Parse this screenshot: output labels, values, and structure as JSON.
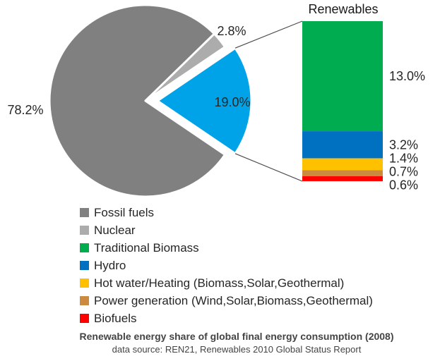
{
  "chart_data": {
    "type": "pie",
    "title": "Renewable energy share of global final energy consumption (2008)",
    "pie": {
      "slices": [
        {
          "name": "Fossil fuels",
          "value": 78.2,
          "label": "78.2%",
          "color": "#808080",
          "exploded": false
        },
        {
          "name": "Nuclear",
          "value": 2.8,
          "label": "2.8%",
          "color": "#ACACAC",
          "exploded": false
        },
        {
          "name": "Renewables",
          "value": 19.0,
          "label": "19.0%",
          "color": "#00A3E8",
          "exploded": true
        }
      ]
    },
    "bar": {
      "title": "Renewables",
      "segments": [
        {
          "name": "Traditional Biomass",
          "value": 13.0,
          "label": "13.0%",
          "color": "#00AC50"
        },
        {
          "name": "Hydro",
          "value": 3.2,
          "label": "3.2%",
          "color": "#0071C0"
        },
        {
          "name": "Hot water/Heating (Biomass,Solar,Geothermal)",
          "value": 1.4,
          "label": "1.4%",
          "color": "#FFC000"
        },
        {
          "name": "Power generation (Wind,Solar,Biomass,Geothermal)",
          "value": 0.7,
          "label": "0.7%",
          "color": "#CB8A3E"
        },
        {
          "name": "Biofuels",
          "value": 0.6,
          "label": "0.6%",
          "color": "#FE0000"
        }
      ]
    }
  },
  "legend": {
    "items": [
      {
        "label": "Fossil fuels",
        "color": "#808080"
      },
      {
        "label": "Nuclear",
        "color": "#ACACAC"
      },
      {
        "label": "Traditional Biomass",
        "color": "#00AC50"
      },
      {
        "label": "Hydro",
        "color": "#0071C0"
      },
      {
        "label": "Hot water/Heating (Biomass,Solar,Geothermal)",
        "color": "#FFC000"
      },
      {
        "label": "Power generation (Wind,Solar,Biomass,Geothermal)",
        "color": "#CB8A3E"
      },
      {
        "label": "Biofuels",
        "color": "#FE0000"
      }
    ]
  },
  "caption": {
    "line1": "Renewable energy share of global final energy consumption (2008)",
    "line2": "data source: REN21, Renewables 2010 Global Status Report"
  }
}
